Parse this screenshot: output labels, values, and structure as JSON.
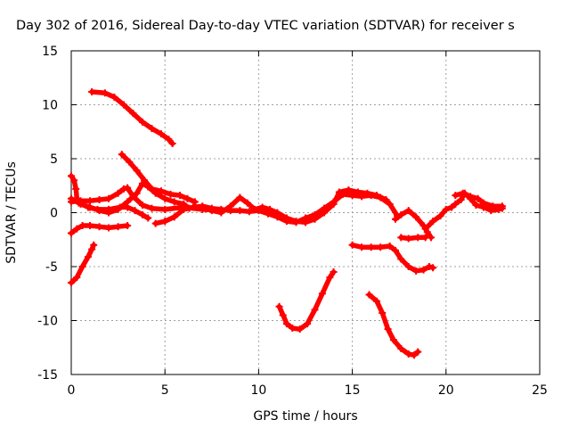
{
  "chart_data": {
    "type": "scatter",
    "title": "Day 302 of 2016, Sidereal Day-to-day VTEC variation (SDTVAR) for receiver s",
    "xlabel": "GPS time / hours",
    "ylabel": "SDTVAR / TECUs",
    "xlim": [
      0,
      25
    ],
    "ylim": [
      -15,
      15
    ],
    "xticks": [
      0,
      5,
      10,
      15,
      20,
      25
    ],
    "yticks": [
      -15,
      -10,
      -5,
      0,
      5,
      10,
      15
    ],
    "xtick_labels": [
      "0",
      "5",
      "10",
      "15",
      "20",
      "25"
    ],
    "ytick_labels": [
      "-15",
      "-10",
      "-5",
      "0",
      "5",
      "10",
      "15"
    ],
    "grid": true,
    "marker": "plus",
    "color": "#ff0000",
    "series": [
      {
        "name": "arc-top-decline",
        "points": [
          [
            1.1,
            11.2
          ],
          [
            1.8,
            11.1
          ],
          [
            2.3,
            10.7
          ],
          [
            2.8,
            10.0
          ],
          [
            3.3,
            9.2
          ],
          [
            3.8,
            8.4
          ],
          [
            4.3,
            7.8
          ],
          [
            4.8,
            7.3
          ],
          [
            5.2,
            6.8
          ],
          [
            5.4,
            6.4
          ]
        ]
      },
      {
        "name": "arc-start-high",
        "points": [
          [
            0.0,
            3.4
          ],
          [
            0.15,
            3.0
          ],
          [
            0.25,
            2.2
          ],
          [
            0.3,
            1.3
          ],
          [
            0.4,
            1.0
          ]
        ]
      },
      {
        "name": "arc-mid-peak",
        "points": [
          [
            2.7,
            5.4
          ],
          [
            3.1,
            4.7
          ],
          [
            3.5,
            3.9
          ],
          [
            3.9,
            3.0
          ],
          [
            4.3,
            2.2
          ],
          [
            4.8,
            2.0
          ],
          [
            5.3,
            1.7
          ],
          [
            5.8,
            1.6
          ],
          [
            6.2,
            1.3
          ],
          [
            6.6,
            1.0
          ]
        ]
      },
      {
        "name": "arc-zero-band-a",
        "points": [
          [
            0.0,
            1.0
          ],
          [
            0.5,
            1.1
          ],
          [
            1.0,
            1.1
          ],
          [
            1.5,
            1.2
          ],
          [
            2.0,
            1.3
          ],
          [
            2.5,
            1.8
          ],
          [
            2.8,
            2.2
          ],
          [
            3.0,
            2.3
          ],
          [
            3.3,
            1.5
          ],
          [
            3.8,
            0.7
          ],
          [
            4.3,
            0.4
          ],
          [
            5.0,
            0.3
          ],
          [
            6.0,
            0.5
          ],
          [
            7.0,
            0.3
          ],
          [
            8.0,
            0.2
          ]
        ]
      },
      {
        "name": "arc-zero-band-b",
        "points": [
          [
            0.5,
            0.8
          ],
          [
            1.0,
            0.5
          ],
          [
            1.5,
            0.2
          ],
          [
            2.0,
            0.0
          ],
          [
            2.5,
            0.3
          ],
          [
            3.0,
            1.0
          ],
          [
            3.5,
            1.8
          ],
          [
            3.8,
            2.7
          ],
          [
            4.1,
            2.4
          ],
          [
            4.5,
            1.8
          ],
          [
            5.0,
            1.3
          ],
          [
            5.5,
            1.0
          ],
          [
            6.0,
            0.8
          ],
          [
            6.3,
            0.4
          ]
        ]
      },
      {
        "name": "arc-zero-band-c",
        "points": [
          [
            0.0,
            1.3
          ],
          [
            0.4,
            0.9
          ],
          [
            0.9,
            0.5
          ],
          [
            1.4,
            0.3
          ],
          [
            2.0,
            0.3
          ],
          [
            2.6,
            0.5
          ],
          [
            3.0,
            0.5
          ],
          [
            3.4,
            0.2
          ],
          [
            3.8,
            -0.2
          ],
          [
            4.1,
            -0.5
          ]
        ]
      },
      {
        "name": "arc-zero-band-d",
        "points": [
          [
            4.5,
            -1.0
          ],
          [
            5.0,
            -0.8
          ],
          [
            5.5,
            -0.4
          ],
          [
            6.0,
            0.3
          ],
          [
            6.5,
            0.5
          ],
          [
            7.0,
            0.6
          ],
          [
            7.5,
            0.4
          ],
          [
            8.0,
            0.3
          ],
          [
            8.5,
            0.2
          ],
          [
            9.0,
            0.2
          ],
          [
            9.5,
            0.1
          ],
          [
            10.0,
            0.2
          ],
          [
            10.5,
            -0.1
          ],
          [
            11.0,
            -0.4
          ],
          [
            11.5,
            -0.8
          ],
          [
            12.0,
            -0.9
          ],
          [
            12.5,
            -0.5
          ],
          [
            13.0,
            -0.2
          ],
          [
            13.5,
            0.4
          ],
          [
            14.0,
            1.0
          ],
          [
            14.5,
            1.7
          ],
          [
            15.0,
            1.6
          ],
          [
            15.5,
            1.5
          ],
          [
            16.0,
            1.6
          ],
          [
            16.5,
            1.4
          ],
          [
            17.0,
            0.8
          ],
          [
            17.4,
            -0.3
          ]
        ]
      },
      {
        "name": "arc-zero-band-e",
        "points": [
          [
            7.0,
            0.5
          ],
          [
            7.5,
            0.2
          ],
          [
            8.0,
            0.0
          ],
          [
            8.5,
            0.6
          ],
          [
            9.0,
            1.4
          ],
          [
            9.4,
            0.9
          ],
          [
            9.8,
            0.3
          ],
          [
            10.2,
            0.5
          ],
          [
            10.6,
            0.3
          ],
          [
            11.0,
            0.0
          ],
          [
            11.5,
            -0.5
          ],
          [
            12.0,
            -0.8
          ],
          [
            12.5,
            -0.9
          ],
          [
            13.0,
            -0.6
          ],
          [
            13.5,
            0.0
          ],
          [
            14.0,
            0.8
          ],
          [
            14.3,
            1.9
          ],
          [
            14.8,
            2.1
          ],
          [
            15.3,
            1.9
          ],
          [
            15.8,
            1.8
          ],
          [
            16.3,
            1.6
          ],
          [
            16.8,
            1.2
          ]
        ]
      },
      {
        "name": "arc-low-flat",
        "points": [
          [
            0.0,
            -1.9
          ],
          [
            0.3,
            -1.5
          ],
          [
            0.6,
            -1.2
          ],
          [
            1.0,
            -1.2
          ],
          [
            1.5,
            -1.3
          ],
          [
            2.0,
            -1.4
          ],
          [
            2.5,
            -1.3
          ],
          [
            3.0,
            -1.2
          ]
        ]
      },
      {
        "name": "arc-early-rise",
        "points": [
          [
            0.0,
            -6.5
          ],
          [
            0.3,
            -6.0
          ],
          [
            0.6,
            -5.0
          ],
          [
            0.9,
            -4.1
          ],
          [
            1.1,
            -3.4
          ],
          [
            1.2,
            -3.0
          ]
        ]
      },
      {
        "name": "arc-late-falling",
        "points": [
          [
            15.0,
            -3.0
          ],
          [
            15.5,
            -3.2
          ],
          [
            16.0,
            -3.2
          ],
          [
            16.5,
            -3.2
          ],
          [
            17.0,
            -3.1
          ],
          [
            17.3,
            -3.5
          ],
          [
            17.6,
            -4.3
          ],
          [
            18.0,
            -5.0
          ],
          [
            18.4,
            -5.4
          ],
          [
            18.8,
            -5.3
          ],
          [
            19.1,
            -5.0
          ],
          [
            19.3,
            -5.1
          ]
        ]
      },
      {
        "name": "arc-late-dip",
        "points": [
          [
            17.3,
            -0.6
          ],
          [
            17.6,
            -0.2
          ],
          [
            18.0,
            0.2
          ],
          [
            18.4,
            -0.4
          ],
          [
            18.8,
            -1.2
          ],
          [
            19.0,
            -1.8
          ],
          [
            19.2,
            -2.3
          ]
        ]
      },
      {
        "name": "arc-late-mini",
        "points": [
          [
            17.6,
            -2.3
          ],
          [
            18.0,
            -2.4
          ],
          [
            18.5,
            -2.3
          ],
          [
            18.9,
            -2.3
          ]
        ]
      },
      {
        "name": "arc-late-rise",
        "points": [
          [
            18.9,
            -1.5
          ],
          [
            19.3,
            -0.8
          ],
          [
            19.7,
            -0.3
          ],
          [
            20.0,
            0.3
          ],
          [
            20.3,
            0.5
          ],
          [
            20.5,
            0.8
          ],
          [
            20.8,
            1.2
          ],
          [
            21.0,
            1.8
          ],
          [
            21.3,
            1.3
          ],
          [
            21.6,
            0.7
          ],
          [
            22.0,
            0.5
          ],
          [
            22.4,
            0.2
          ],
          [
            22.8,
            0.3
          ],
          [
            23.0,
            0.4
          ]
        ]
      },
      {
        "name": "arc-late-upper",
        "points": [
          [
            20.5,
            1.6
          ],
          [
            20.9,
            1.8
          ],
          [
            21.3,
            1.5
          ],
          [
            21.7,
            1.3
          ],
          [
            22.0,
            0.9
          ],
          [
            22.5,
            0.6
          ],
          [
            23.0,
            0.6
          ]
        ]
      },
      {
        "name": "arc-mid-trough",
        "points": [
          [
            11.1,
            -8.7
          ],
          [
            11.3,
            -9.5
          ],
          [
            11.5,
            -10.3
          ],
          [
            11.8,
            -10.7
          ],
          [
            12.2,
            -10.8
          ],
          [
            12.6,
            -10.3
          ],
          [
            13.0,
            -9.0
          ],
          [
            13.4,
            -7.5
          ],
          [
            13.8,
            -6.0
          ],
          [
            14.0,
            -5.5
          ]
        ]
      },
      {
        "name": "arc-late-trough",
        "points": [
          [
            15.9,
            -7.6
          ],
          [
            16.3,
            -8.2
          ],
          [
            16.6,
            -9.3
          ],
          [
            16.9,
            -10.8
          ],
          [
            17.2,
            -11.8
          ],
          [
            17.6,
            -12.6
          ],
          [
            18.0,
            -13.1
          ],
          [
            18.3,
            -13.2
          ],
          [
            18.5,
            -12.9
          ]
        ]
      }
    ]
  }
}
